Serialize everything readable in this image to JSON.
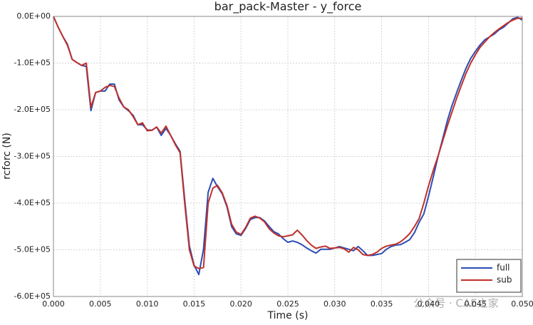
{
  "chart_data": {
    "type": "line",
    "title": "bar_pack-Master - y_force",
    "x_label": "Time (s)",
    "y_label": "rcforc (N)",
    "watermark": "公众号 · CAE之家",
    "x": [
      0,
      0.0005,
      0.001,
      0.0015,
      0.002,
      0.0025,
      0.003,
      0.0035,
      0.004,
      0.0045,
      0.005,
      0.0055,
      0.006,
      0.0065,
      0.007,
      0.0075,
      0.008,
      0.0085,
      0.009,
      0.0095,
      0.01,
      0.0105,
      0.011,
      0.0115,
      0.012,
      0.0125,
      0.013,
      0.0135,
      0.014,
      0.0145,
      0.015,
      0.0155,
      0.016,
      0.0165,
      0.017,
      0.0175,
      0.018,
      0.0185,
      0.019,
      0.0195,
      0.02,
      0.0205,
      0.021,
      0.0215,
      0.022,
      0.0225,
      0.023,
      0.0235,
      0.024,
      0.0245,
      0.025,
      0.0255,
      0.026,
      0.0265,
      0.027,
      0.0275,
      0.028,
      0.0285,
      0.029,
      0.0295,
      0.03,
      0.0305,
      0.031,
      0.0315,
      0.032,
      0.0325,
      0.033,
      0.0335,
      0.034,
      0.0345,
      0.035,
      0.0355,
      0.036,
      0.0365,
      0.037,
      0.0375,
      0.038,
      0.0385,
      0.039,
      0.0395,
      0.04,
      0.0405,
      0.041,
      0.0415,
      0.042,
      0.0425,
      0.043,
      0.0435,
      0.044,
      0.0445,
      0.045,
      0.0455,
      0.046,
      0.0465,
      0.047,
      0.0475,
      0.048,
      0.0485,
      0.049,
      0.0495,
      0.05
    ],
    "series": [
      {
        "name": "full",
        "color": "#2a4db5",
        "values": [
          0,
          -23000,
          -43000,
          -60000,
          -92000,
          -99000,
          -105000,
          -107000,
          -202000,
          -163000,
          -160000,
          -160000,
          -145000,
          -145000,
          -179000,
          -194000,
          -202000,
          -212000,
          -232000,
          -232000,
          -243000,
          -244000,
          -237000,
          -255000,
          -240000,
          -255000,
          -273000,
          -289000,
          -392000,
          -492000,
          -533000,
          -553000,
          -499000,
          -377000,
          -347000,
          -365000,
          -380000,
          -408000,
          -450000,
          -466000,
          -469000,
          -454000,
          -435000,
          -431000,
          -431000,
          -438000,
          -450000,
          -461000,
          -466000,
          -476000,
          -484000,
          -481000,
          -484000,
          -489000,
          -496000,
          -502000,
          -507000,
          -499000,
          -499000,
          -499000,
          -496000,
          -493000,
          -496000,
          -499000,
          -502000,
          -493000,
          -502000,
          -512000,
          -512000,
          -510000,
          -508000,
          -499000,
          -493000,
          -490000,
          -489000,
          -484000,
          -478000,
          -463000,
          -441000,
          -423000,
          -385000,
          -344000,
          -301000,
          -263000,
          -224000,
          -191000,
          -163000,
          -136000,
          -111000,
          -90000,
          -75000,
          -61000,
          -50000,
          -44000,
          -38000,
          -29000,
          -23000,
          -14000,
          -5000,
          -2000,
          -8000
        ]
      },
      {
        "name": "sub",
        "color": "#c0302a",
        "values": [
          0,
          -23000,
          -43000,
          -62000,
          -92000,
          -99000,
          -105000,
          -100000,
          -195000,
          -163000,
          -160000,
          -152000,
          -148000,
          -150000,
          -175000,
          -194000,
          -200000,
          -215000,
          -232000,
          -228000,
          -245000,
          -244000,
          -237000,
          -250000,
          -235000,
          -255000,
          -275000,
          -292000,
          -400000,
          -500000,
          -535000,
          -540000,
          -538000,
          -400000,
          -368000,
          -362000,
          -378000,
          -405000,
          -445000,
          -462000,
          -467000,
          -452000,
          -432000,
          -428000,
          -432000,
          -440000,
          -455000,
          -464000,
          -470000,
          -472000,
          -470000,
          -468000,
          -458000,
          -468000,
          -480000,
          -490000,
          -497000,
          -494000,
          -492000,
          -497000,
          -496000,
          -495000,
          -498000,
          -505000,
          -495000,
          -500000,
          -510000,
          -512000,
          -510000,
          -505000,
          -497000,
          -492000,
          -490000,
          -488000,
          -483000,
          -475000,
          -465000,
          -450000,
          -433000,
          -400000,
          -363000,
          -330000,
          -300000,
          -268000,
          -235000,
          -205000,
          -175000,
          -148000,
          -122000,
          -100000,
          -82000,
          -66000,
          -55000,
          -44000,
          -35000,
          -27000,
          -20000,
          -13000,
          -8000,
          -4000,
          -4000
        ]
      }
    ],
    "xlim": [
      0,
      0.05
    ],
    "xticks": [
      {
        "value": 0,
        "label": "0.000"
      },
      {
        "value": 0.005,
        "label": "0.005"
      },
      {
        "value": 0.01,
        "label": "0.010"
      },
      {
        "value": 0.015,
        "label": "0.015"
      },
      {
        "value": 0.02,
        "label": "0.020"
      },
      {
        "value": 0.025,
        "label": "0.025"
      },
      {
        "value": 0.03,
        "label": "0.030"
      },
      {
        "value": 0.035,
        "label": "0.035"
      },
      {
        "value": 0.04,
        "label": "0.040"
      },
      {
        "value": 0.045,
        "label": "0.045"
      },
      {
        "value": 0.05,
        "label": "0.050"
      }
    ],
    "ylim": [
      -600000,
      0
    ],
    "yticks": [
      {
        "value": -600000,
        "label": "-6.0E+05"
      },
      {
        "value": -500000,
        "label": "-5.0E+05"
      },
      {
        "value": -400000,
        "label": "-4.0E+05"
      },
      {
        "value": -300000,
        "label": "-3.0E+05"
      },
      {
        "value": -200000,
        "label": "-2.0E+05"
      },
      {
        "value": -100000,
        "label": "-1.0E+05"
      },
      {
        "value": 0,
        "label": "0.0E+00"
      }
    ],
    "grid": true,
    "legend": "lower right"
  }
}
